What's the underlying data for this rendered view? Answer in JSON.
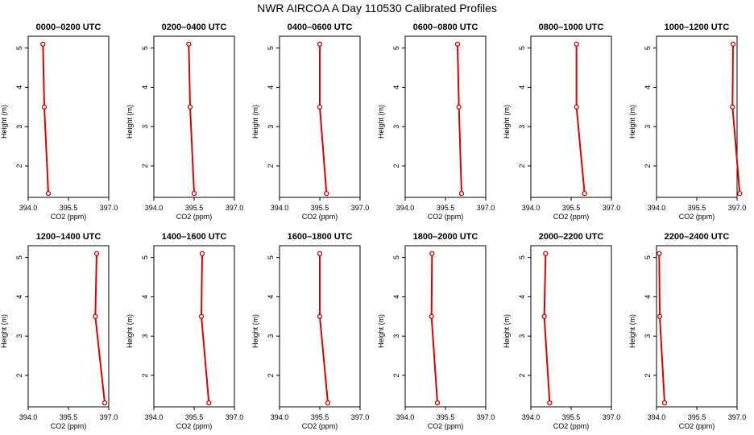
{
  "title": "NWR AIRCOA A  Day 110530  Calibrated Profiles",
  "xlabel": "CO2 (ppm)",
  "ylabel": "Height (m)",
  "x_ticks": [
    "394.0",
    "395.5",
    "397.0"
  ],
  "y_ticks": [
    "2",
    "3",
    "4",
    "5"
  ],
  "colors": {
    "line": "#dd0000",
    "marker": "#cc0000",
    "axis": "#000000"
  },
  "chart_data": [
    {
      "type": "line",
      "title": "0000–0200 UTC",
      "xlim": [
        394.0,
        397.0
      ],
      "ylim": [
        1.2,
        5.3
      ],
      "x": [
        394.55,
        394.6,
        394.75
      ],
      "y": [
        5.1,
        3.5,
        1.3
      ]
    },
    {
      "type": "line",
      "title": "0200–0400 UTC",
      "xlim": [
        394.0,
        397.0
      ],
      "ylim": [
        1.2,
        5.3
      ],
      "x": [
        395.3,
        395.35,
        395.5
      ],
      "y": [
        5.1,
        3.5,
        1.3
      ]
    },
    {
      "type": "line",
      "title": "0400–0600 UTC",
      "xlim": [
        394.0,
        397.0
      ],
      "ylim": [
        1.2,
        5.3
      ],
      "x": [
        395.5,
        395.5,
        395.75
      ],
      "y": [
        5.1,
        3.5,
        1.3
      ]
    },
    {
      "type": "line",
      "title": "0600–0800 UTC",
      "xlim": [
        394.0,
        397.0
      ],
      "ylim": [
        1.2,
        5.3
      ],
      "x": [
        395.95,
        396.0,
        396.1
      ],
      "y": [
        5.1,
        3.5,
        1.3
      ]
    },
    {
      "type": "line",
      "title": "0800–1000 UTC",
      "xlim": [
        394.0,
        397.0
      ],
      "ylim": [
        1.2,
        5.3
      ],
      "x": [
        395.7,
        395.7,
        396.0
      ],
      "y": [
        5.1,
        3.5,
        1.3
      ]
    },
    {
      "type": "line",
      "title": "1000–1200 UTC",
      "xlim": [
        394.0,
        397.0
      ],
      "ylim": [
        1.2,
        5.3
      ],
      "x": [
        396.85,
        396.83,
        397.1
      ],
      "y": [
        5.1,
        3.5,
        1.3
      ]
    },
    {
      "type": "line",
      "title": "1200–1400 UTC",
      "xlim": [
        394.0,
        397.0
      ],
      "ylim": [
        1.2,
        5.3
      ],
      "x": [
        396.55,
        396.5,
        396.85
      ],
      "y": [
        5.1,
        3.5,
        1.3
      ]
    },
    {
      "type": "line",
      "title": "1400–1600 UTC",
      "xlim": [
        394.0,
        397.0
      ],
      "ylim": [
        1.2,
        5.3
      ],
      "x": [
        395.8,
        395.77,
        396.05
      ],
      "y": [
        5.1,
        3.5,
        1.3
      ]
    },
    {
      "type": "line",
      "title": "1600–1800 UTC",
      "xlim": [
        394.0,
        397.0
      ],
      "ylim": [
        1.2,
        5.3
      ],
      "x": [
        395.5,
        395.5,
        395.8
      ],
      "y": [
        5.1,
        3.5,
        1.3
      ]
    },
    {
      "type": "line",
      "title": "1800–2000 UTC",
      "xlim": [
        394.0,
        397.0
      ],
      "ylim": [
        1.2,
        5.3
      ],
      "x": [
        395.0,
        394.98,
        395.2
      ],
      "y": [
        5.1,
        3.5,
        1.3
      ]
    },
    {
      "type": "line",
      "title": "2000–2200 UTC",
      "xlim": [
        394.0,
        397.0
      ],
      "ylim": [
        1.2,
        5.3
      ],
      "x": [
        394.55,
        394.5,
        394.7
      ],
      "y": [
        5.1,
        3.5,
        1.3
      ]
    },
    {
      "type": "line",
      "title": "2200–2400 UTC",
      "xlim": [
        394.0,
        397.0
      ],
      "ylim": [
        1.2,
        5.3
      ],
      "x": [
        394.1,
        394.12,
        394.3
      ],
      "y": [
        5.1,
        3.5,
        1.3
      ]
    }
  ]
}
